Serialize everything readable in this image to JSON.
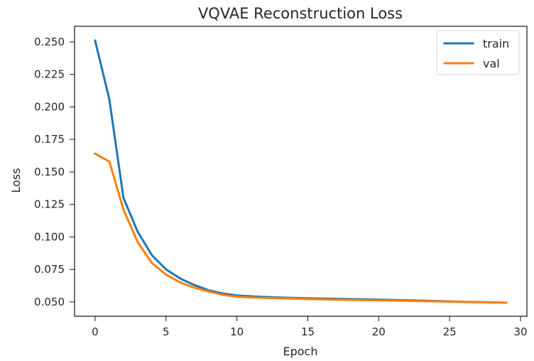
{
  "chart_data": {
    "type": "line",
    "title": "VQVAE Reconstruction Loss",
    "xlabel": "Epoch",
    "ylabel": "Loss",
    "xlim": [
      -1.45,
      30.45
    ],
    "ylim": [
      0.039,
      0.262
    ],
    "x_ticks": [
      0,
      5,
      10,
      15,
      20,
      25,
      30
    ],
    "y_ticks": [
      0.05,
      0.075,
      0.1,
      0.125,
      0.15,
      0.175,
      0.2,
      0.225,
      0.25
    ],
    "x_tick_labels": [
      "0",
      "5",
      "10",
      "15",
      "20",
      "25",
      "30"
    ],
    "y_tick_labels": [
      "0.050",
      "0.075",
      "0.100",
      "0.125",
      "0.150",
      "0.175",
      "0.200",
      "0.225",
      "0.250"
    ],
    "grid": false,
    "legend_position": "top-right",
    "x": [
      0,
      1,
      2,
      3,
      4,
      5,
      6,
      7,
      8,
      9,
      10,
      11,
      12,
      13,
      14,
      15,
      16,
      17,
      18,
      19,
      20,
      21,
      22,
      23,
      24,
      25,
      26,
      27,
      28,
      29
    ],
    "series": [
      {
        "name": "train",
        "color": "#1f77b4",
        "values": [
          0.251,
          0.206,
          0.13,
          0.104,
          0.086,
          0.075,
          0.068,
          0.063,
          0.059,
          0.0565,
          0.055,
          0.0543,
          0.0538,
          0.0534,
          0.0531,
          0.0528,
          0.0526,
          0.0524,
          0.0522,
          0.052,
          0.0518,
          0.0515,
          0.0512,
          0.051,
          0.0507,
          0.0504,
          0.0501,
          0.0499,
          0.0497,
          0.0494
        ]
      },
      {
        "name": "val",
        "color": "#ff7f0e",
        "values": [
          0.164,
          0.158,
          0.121,
          0.096,
          0.08,
          0.071,
          0.065,
          0.061,
          0.058,
          0.0555,
          0.054,
          0.0535,
          0.0531,
          0.0528,
          0.0525,
          0.0522,
          0.052,
          0.0518,
          0.0516,
          0.0514,
          0.0512,
          0.051,
          0.0508,
          0.0506,
          0.0504,
          0.0502,
          0.05,
          0.0498,
          0.0496,
          0.0494
        ]
      }
    ]
  }
}
